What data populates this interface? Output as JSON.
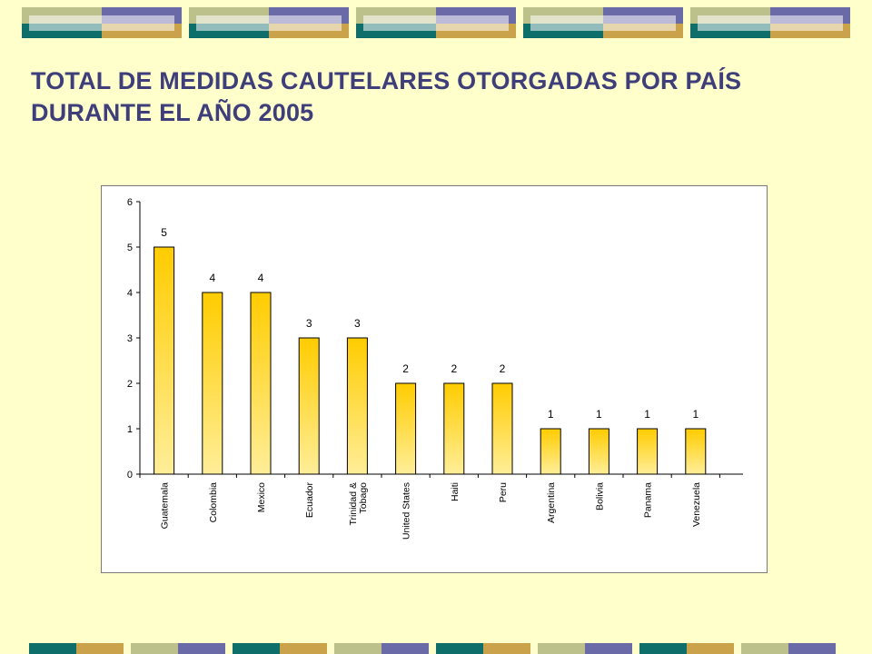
{
  "slide": {
    "title": "TOTAL DE MEDIDAS CAUTELARES OTORGADAS POR PAÍS DURANTE EL AÑO 2005"
  },
  "colors": {
    "background": "#FFFFCC",
    "title": "#3E3E7A",
    "bar_top": "#FFCC00",
    "bar_bottom": "#FFEE99",
    "deco_olive": "#BCC08A",
    "deco_purple": "#6A6AA8",
    "deco_teal": "#0E6E6A",
    "deco_gold": "#C9A24A"
  },
  "chart_data": {
    "type": "bar",
    "title": "",
    "xlabel": "",
    "ylabel": "",
    "categories": [
      "Guatemala",
      "Colombia",
      "Mexico",
      "Ecuador",
      "Trinidad & Tobago",
      "United States",
      "Haiti",
      "Peru",
      "Argentina",
      "Bolivia",
      "Panama",
      "Venezuela"
    ],
    "category_lines": [
      [
        "Guatemala"
      ],
      [
        "Colombia"
      ],
      [
        "Mexico"
      ],
      [
        "Ecuador"
      ],
      [
        "Trinidad &",
        "Tobago"
      ],
      [
        "United States"
      ],
      [
        "Haiti"
      ],
      [
        "Peru"
      ],
      [
        "Argentina"
      ],
      [
        "Bolivia"
      ],
      [
        "Panama"
      ],
      [
        "Venezuela"
      ]
    ],
    "values": [
      5,
      4,
      4,
      3,
      3,
      2,
      2,
      2,
      1,
      1,
      1,
      1
    ],
    "ylim": [
      0,
      6
    ],
    "yticks": [
      0,
      1,
      2,
      3,
      4,
      5,
      6
    ],
    "data_labels": true,
    "legend": "none",
    "grid": false
  }
}
